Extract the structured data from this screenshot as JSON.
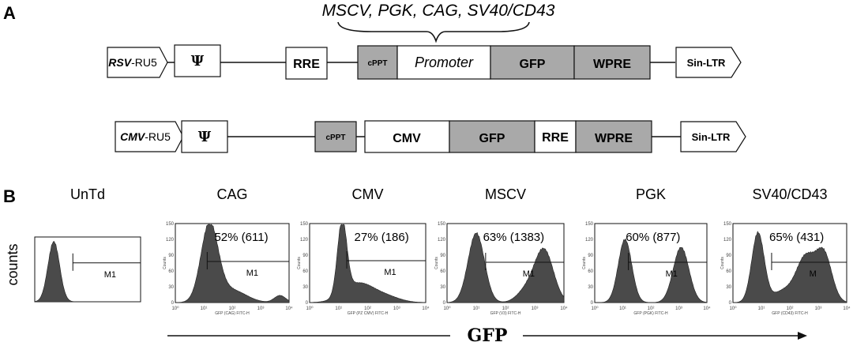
{
  "panel_a": {
    "letter": "A",
    "promoter_options": "MSCV, PGK, CAG, SV40/CD43",
    "construct1": {
      "ltr5_bold": "RSV",
      "ltr5_rest": "-RU5",
      "psi": "Ψ",
      "rre": "RRE",
      "cppt": "cPPT",
      "promoter": "Promoter",
      "gfp": "GFP",
      "wpre": "WPRE",
      "ltr3": "Sin-LTR"
    },
    "construct2": {
      "ltr5_bold": "CMV",
      "ltr5_rest": "-RU5",
      "psi": "Ψ",
      "cppt": "cPPT",
      "cmv": "CMV",
      "gfp": "GFP",
      "rre": "RRE",
      "wpre": "WPRE",
      "ltr3": "Sin-LTR"
    }
  },
  "panel_b": {
    "letter": "B",
    "y_label": "counts",
    "x_label": "GFP",
    "panels": [
      {
        "title": "UnTd",
        "pct": "",
        "gate": "M1",
        "x_axis_label": ""
      },
      {
        "title": "CAG",
        "pct": "52% (611)",
        "gate": "M1",
        "x_axis_label": "GFP (CAG) FITC-H"
      },
      {
        "title": "CMV",
        "pct": "27% (186)",
        "gate": "M1",
        "x_axis_label": "GFP (PZ CMV) FITC-H"
      },
      {
        "title": "MSCV",
        "pct": "63% (1383)",
        "gate": "M1",
        "x_axis_label": "GFP (V3) FITC-H"
      },
      {
        "title": "PGK",
        "pct": "60% (877)",
        "gate": "M1",
        "x_axis_label": "GFP (PGK) FITC-H"
      },
      {
        "title": "SV40/CD43",
        "pct": "65% (431)",
        "gate": "M",
        "x_axis_label": "GFP (CD43) FITC-H"
      }
    ],
    "y_axis_name": "Counts",
    "y_ticks": [
      "0",
      "30",
      "60",
      "90",
      "120",
      "150"
    ],
    "x_ticks": [
      "10⁰",
      "10¹",
      "10²",
      "10³",
      "10⁴"
    ]
  },
  "colors": {
    "grey_box": "#a9a9a9",
    "histogram": "#4a4a4a"
  }
}
